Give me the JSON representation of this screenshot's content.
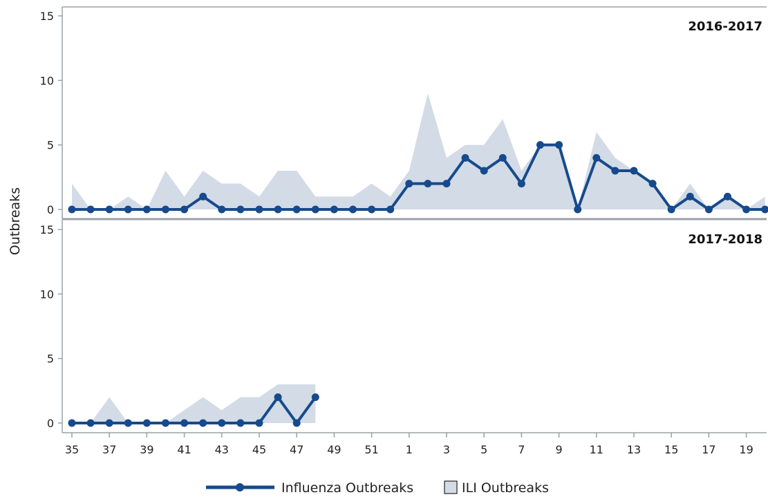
{
  "chart_data": {
    "type": "line",
    "ylabel": "Outbreaks",
    "xlabel": "",
    "ylim": [
      0,
      15
    ],
    "y_ticks": [
      "0",
      "5",
      "10",
      "15"
    ],
    "x_ticks": [
      "35",
      "37",
      "39",
      "41",
      "43",
      "45",
      "47",
      "49",
      "51",
      "1",
      "3",
      "5",
      "7",
      "9",
      "11",
      "13",
      "15",
      "17",
      "19"
    ],
    "weeks": [
      "35",
      "36",
      "37",
      "38",
      "39",
      "40",
      "41",
      "42",
      "43",
      "44",
      "45",
      "46",
      "47",
      "48",
      "49",
      "50",
      "51",
      "52",
      "1",
      "2",
      "3",
      "4",
      "5",
      "6",
      "7",
      "8",
      "9",
      "10",
      "11",
      "12",
      "13",
      "14",
      "15",
      "16",
      "17",
      "18",
      "19",
      "20"
    ],
    "colors": {
      "line": "#164a8c",
      "area": "#d2dbe6",
      "axis": "#9aa0a6"
    },
    "legend": {
      "line_label": "Influenza Outbreaks",
      "area_label": "ILI Outbreaks",
      "placement": "bottom"
    },
    "panels": [
      {
        "label": "2016-2017",
        "series": [
          {
            "name": "Influenza Outbreaks",
            "type": "line",
            "values": [
              0,
              0,
              0,
              0,
              0,
              0,
              0,
              1,
              0,
              0,
              0,
              0,
              0,
              0,
              0,
              0,
              0,
              0,
              2,
              2,
              2,
              4,
              3,
              4,
              2,
              5,
              5,
              0,
              4,
              3,
              3,
              2,
              0,
              1,
              0,
              1,
              0,
              0
            ]
          },
          {
            "name": "ILI Outbreaks",
            "type": "area",
            "values": [
              2,
              0,
              0,
              1,
              0,
              3,
              1,
              3,
              2,
              2,
              1,
              3,
              3,
              1,
              1,
              1,
              2,
              1,
              3,
              9,
              4,
              5,
              5,
              7,
              3,
              5,
              5,
              0,
              6,
              4,
              3,
              2,
              0,
              2,
              0,
              1,
              0,
              1
            ]
          }
        ]
      },
      {
        "label": "2017-2018",
        "series": [
          {
            "name": "Influenza Outbreaks",
            "type": "line",
            "values": [
              0,
              0,
              0,
              0,
              0,
              0,
              0,
              0,
              0,
              0,
              0,
              2,
              0,
              2
            ]
          },
          {
            "name": "ILI Outbreaks",
            "type": "area",
            "values": [
              0,
              0,
              2,
              0,
              0,
              0,
              1,
              2,
              1,
              2,
              2,
              3,
              3,
              3
            ]
          }
        ]
      }
    ]
  }
}
